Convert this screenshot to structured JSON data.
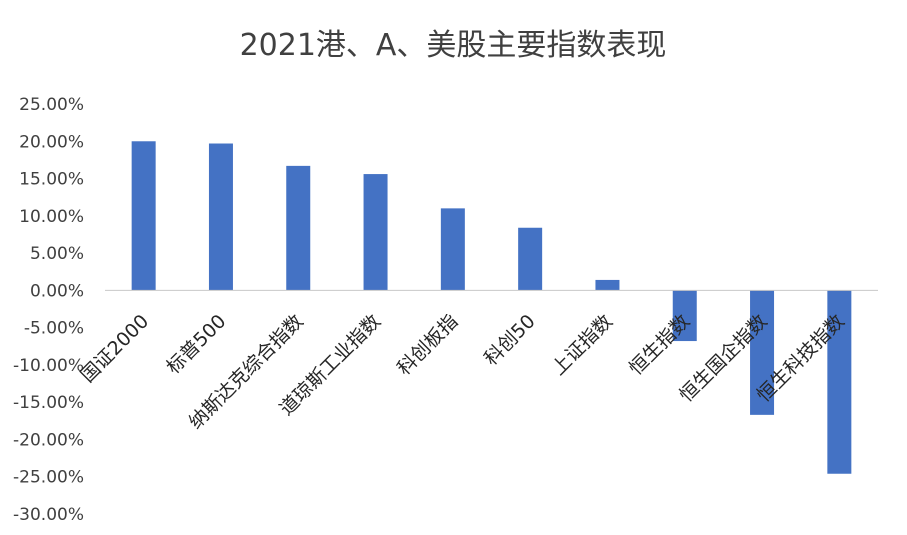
{
  "chart_data": {
    "type": "bar",
    "title": "2021港、A、美股主要指数表现",
    "xlabel": "",
    "ylabel": "",
    "categories": [
      "国证2000",
      "标普500",
      "纳斯达克综合指数",
      "道琼斯工业指数",
      "科创板指",
      "科创50",
      "上证指数",
      "恒生指数",
      "恒生国企指数",
      "恒生科技指数"
    ],
    "series": [
      {
        "values": [
          20.0,
          19.7,
          16.7,
          15.6,
          11.0,
          8.4,
          1.4,
          -6.8,
          -16.7,
          -24.6
        ]
      }
    ],
    "ylim": [
      -30,
      25
    ],
    "yticks": [
      25,
      20,
      15,
      10,
      5,
      0,
      -5,
      -10,
      -15,
      -20,
      -25,
      -30
    ],
    "ytick_labels": [
      "25.00%",
      "20.00%",
      "15.00%",
      "10.00%",
      "5.00%",
      "0.00%",
      "-5.00%",
      "-10.00%",
      "-15.00%",
      "-20.00%",
      "-25.00%",
      "-30.00%"
    ],
    "bar_color": "#4472c4",
    "grid": false,
    "legend": "none"
  }
}
